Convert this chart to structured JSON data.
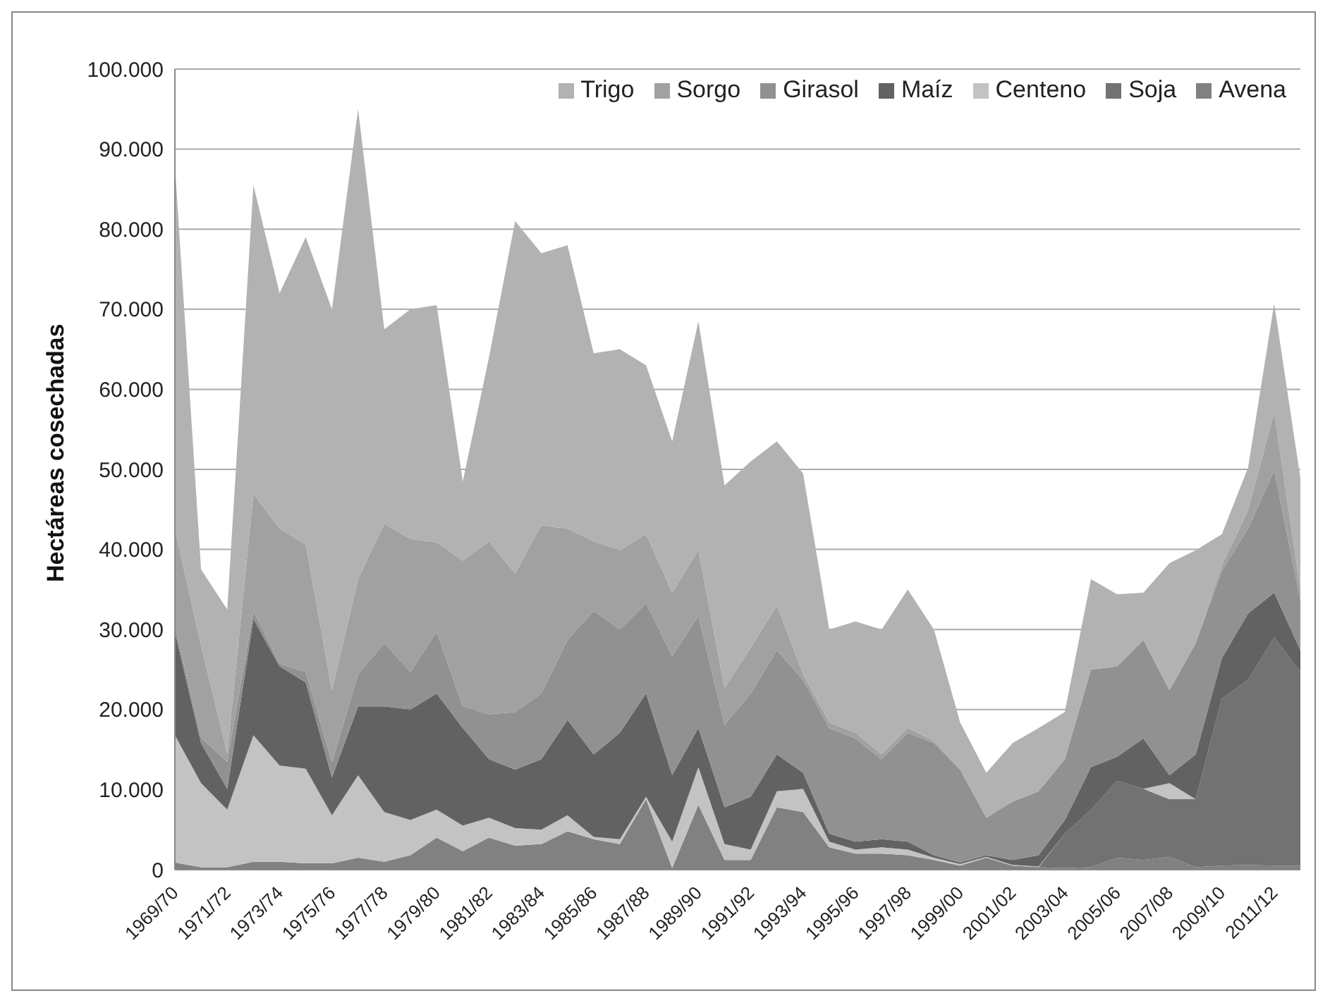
{
  "chart_data": {
    "type": "area",
    "stacked": true,
    "ylabel": "Hectáreas cosechadas",
    "categories": [
      "1969/70",
      null,
      "1971/72",
      null,
      "1973/74",
      null,
      "1975/76",
      null,
      "1977/78",
      null,
      "1979/80",
      null,
      "1981/82",
      null,
      "1983/84",
      null,
      "1985/86",
      null,
      "1987/88",
      null,
      "1989/90",
      null,
      "1991/92",
      null,
      "1993/94",
      null,
      "1995/96",
      null,
      "1997/98",
      null,
      "1999/00",
      null,
      "2001/02",
      null,
      "2003/04",
      null,
      "2005/06",
      null,
      "2007/08",
      null,
      "2009/10",
      null,
      "2011/12",
      null
    ],
    "series": [
      {
        "name": "Avena",
        "color": "#818181",
        "values": [
          900,
          300,
          300,
          1000,
          1000,
          800,
          800,
          1500,
          1000,
          1800,
          4000,
          2300,
          4000,
          3000,
          3200,
          4800,
          3800,
          3200,
          8800,
          200,
          8100,
          1200,
          1200,
          7800,
          7200,
          2800,
          2000,
          2000,
          1800,
          1200,
          500,
          1500,
          500,
          300,
          200,
          300,
          1500,
          1200,
          1600,
          300,
          500,
          600,
          500,
          500
        ]
      },
      {
        "name": "Soja",
        "color": "#727272",
        "values": [
          null,
          null,
          null,
          null,
          null,
          null,
          null,
          null,
          null,
          null,
          null,
          null,
          null,
          null,
          null,
          null,
          null,
          null,
          null,
          null,
          null,
          null,
          null,
          null,
          null,
          null,
          null,
          null,
          null,
          null,
          null,
          null,
          null,
          0,
          4300,
          7200,
          9600,
          8900,
          7200,
          8500,
          20900,
          23100,
          28500,
          24200
        ]
      },
      {
        "name": "Centeno",
        "color": "#c3c3c3",
        "values": [
          15900,
          10500,
          7200,
          15800,
          12000,
          11800,
          6000,
          10300,
          6200,
          4400,
          3500,
          3200,
          2500,
          2200,
          1800,
          2000,
          300,
          600,
          300,
          3300,
          4700,
          2000,
          1300,
          2000,
          2900,
          700,
          500,
          800,
          700,
          300,
          200,
          100,
          100,
          100,
          0,
          0,
          0,
          0,
          2000,
          0,
          0,
          0,
          0,
          0
        ]
      },
      {
        "name": "Maíz",
        "color": "#626262",
        "values": [
          12900,
          5000,
          2600,
          14500,
          12400,
          10800,
          4700,
          8600,
          13200,
          13800,
          14500,
          12200,
          7300,
          7300,
          8800,
          11900,
          10300,
          13300,
          12900,
          8300,
          4900,
          4600,
          6600,
          4600,
          2000,
          1000,
          1000,
          1000,
          1000,
          300,
          200,
          200,
          600,
          1400,
          1700,
          5300,
          3000,
          6300,
          1000,
          5600,
          5000,
          8300,
          5600,
          2700
        ]
      },
      {
        "name": "Girasol",
        "color": "#919191",
        "values": [
          800,
          700,
          3400,
          1000,
          300,
          1300,
          1900,
          4000,
          7900,
          4700,
          7700,
          2700,
          5600,
          7200,
          8200,
          10000,
          17900,
          12900,
          11300,
          14900,
          14000,
          10300,
          12900,
          13000,
          11600,
          13200,
          12900,
          10000,
          13600,
          14000,
          11600,
          4700,
          7300,
          8000,
          7600,
          12200,
          11300,
          12300,
          10600,
          13900,
          10900,
          10600,
          15300,
          6200
        ]
      },
      {
        "name": "Sorgo",
        "color": "#a1a1a1",
        "values": [
          12100,
          11500,
          1000,
          14600,
          16900,
          15900,
          9000,
          11900,
          14900,
          16600,
          11200,
          18200,
          21600,
          17300,
          21000,
          13900,
          8700,
          9900,
          8600,
          7900,
          8200,
          4600,
          5700,
          5600,
          700,
          700,
          700,
          600,
          600,
          300,
          0,
          0,
          0,
          0,
          0,
          0,
          0,
          0,
          0,
          0,
          700,
          2300,
          7200,
          1400
        ]
      },
      {
        "name": "Trigo",
        "color": "#b2b2b2",
        "values": [
          45400,
          9500,
          18000,
          38600,
          29400,
          38400,
          47600,
          58700,
          24300,
          28700,
          29600,
          9900,
          23000,
          44000,
          34000,
          35400,
          23500,
          25100,
          21100,
          18900,
          28600,
          25300,
          23300,
          20500,
          25100,
          11600,
          13900,
          15600,
          17300,
          13900,
          5900,
          5600,
          7300,
          7900,
          5900,
          11300,
          9000,
          5900,
          15900,
          11600,
          3900,
          5300,
          13600,
          13900
        ]
      }
    ],
    "ylim": [
      0,
      100000
    ],
    "yticks": [
      {
        "value": 0,
        "label": "0"
      },
      {
        "value": 10000,
        "label": "10.000"
      },
      {
        "value": 20000,
        "label": "20.000"
      },
      {
        "value": 30000,
        "label": "30.000"
      },
      {
        "value": 40000,
        "label": "40.000"
      },
      {
        "value": 50000,
        "label": "50.000"
      },
      {
        "value": 60000,
        "label": "60.000"
      },
      {
        "value": 70000,
        "label": "70.000"
      },
      {
        "value": 80000,
        "label": "80.000"
      },
      {
        "value": 90000,
        "label": "90.000"
      },
      {
        "value": 100000,
        "label": "100.000"
      }
    ],
    "grid": "y",
    "legend": "top right"
  }
}
